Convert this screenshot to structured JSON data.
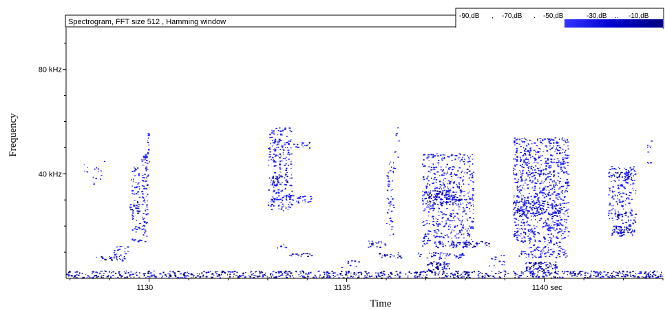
{
  "chart_data": {
    "type": "heatmap",
    "title": "Spectrogram, FFT size 512 , Hamming window",
    "xlabel": "Time",
    "ylabel": "Frequency",
    "xlim": [
      1127.9,
      1143.0
    ],
    "ylim": [
      0,
      96
    ],
    "x_ticks": [
      {
        "value": 1130,
        "label": "1130"
      },
      {
        "value": 1135,
        "label": "1135"
      },
      {
        "value": 1140,
        "label": "1140 sec"
      }
    ],
    "y_ticks": [
      {
        "value": 40,
        "label": "40 kHz"
      },
      {
        "value": 80,
        "label": "80 kHz"
      }
    ],
    "color_scale": {
      "labels": [
        "-90,dB",
        "-70,dB",
        "-50,dB",
        "-30,dB",
        "-10,dB"
      ],
      "separators": [
        ",",
        ".",
        "",
        ".."
      ],
      "colors": [
        "#ffffff",
        "#0000ff",
        "#000080"
      ]
    },
    "clusters": [
      {
        "t_start": 1127.9,
        "t_end": 1143.0,
        "f_min": 0.3,
        "f_max": 3.0,
        "density": 0.55,
        "dark": true
      },
      {
        "t_start": 1128.6,
        "t_end": 1129.4,
        "f_min": 7.0,
        "f_max": 8.6,
        "density": 0.6,
        "dark": true
      },
      {
        "t_start": 1129.1,
        "t_end": 1129.5,
        "f_min": 9.0,
        "f_max": 12.5,
        "density": 0.3,
        "dark": false
      },
      {
        "t_start": 1129.55,
        "t_end": 1129.95,
        "f_min": 14.0,
        "f_max": 15.2,
        "density": 0.7,
        "dark": true
      },
      {
        "t_start": 1129.8,
        "t_end": 1129.95,
        "f_min": 16.0,
        "f_max": 48.0,
        "density": 0.45,
        "dark": false
      },
      {
        "t_start": 1129.55,
        "t_end": 1129.75,
        "f_min": 18.0,
        "f_max": 45.0,
        "density": 0.3,
        "dark": false
      },
      {
        "t_start": 1129.5,
        "t_end": 1129.75,
        "f_min": 25.0,
        "f_max": 28.5,
        "density": 0.6,
        "dark": true
      },
      {
        "t_start": 1129.9,
        "t_end": 1130.0,
        "f_min": 38.0,
        "f_max": 56.0,
        "density": 0.3,
        "dark": false
      },
      {
        "t_start": 1128.3,
        "t_end": 1128.9,
        "f_min": 36.0,
        "f_max": 45.0,
        "density": 0.08,
        "dark": false
      },
      {
        "t_start": 1133.0,
        "t_end": 1133.6,
        "f_min": 26.0,
        "f_max": 58.0,
        "density": 0.28,
        "dark": false
      },
      {
        "t_start": 1133.1,
        "t_end": 1133.5,
        "f_min": 36.0,
        "f_max": 39.5,
        "density": 0.6,
        "dark": true
      },
      {
        "t_start": 1133.1,
        "t_end": 1134.1,
        "f_min": 29.0,
        "f_max": 32.0,
        "density": 0.45,
        "dark": false
      },
      {
        "t_start": 1133.1,
        "t_end": 1134.1,
        "f_min": 50.0,
        "f_max": 53.0,
        "density": 0.35,
        "dark": false
      },
      {
        "t_start": 1133.5,
        "t_end": 1134.1,
        "f_min": 8.5,
        "f_max": 9.8,
        "density": 0.55,
        "dark": true
      },
      {
        "t_start": 1133.2,
        "t_end": 1133.5,
        "f_min": 11.5,
        "f_max": 13.0,
        "density": 0.3,
        "dark": false
      },
      {
        "t_start": 1135.5,
        "t_end": 1136.0,
        "f_min": 12.0,
        "f_max": 14.5,
        "density": 0.5,
        "dark": true
      },
      {
        "t_start": 1135.8,
        "t_end": 1136.4,
        "f_min": 8.0,
        "f_max": 10.0,
        "density": 0.5,
        "dark": true
      },
      {
        "t_start": 1136.0,
        "t_end": 1136.2,
        "f_min": 16.0,
        "f_max": 45.0,
        "density": 0.25,
        "dark": false
      },
      {
        "t_start": 1134.8,
        "t_end": 1135.3,
        "f_min": 4.0,
        "f_max": 7.0,
        "density": 0.15,
        "dark": false
      },
      {
        "t_start": 1136.9,
        "t_end": 1138.2,
        "f_min": 12.0,
        "f_max": 48.0,
        "density": 0.3,
        "dark": false
      },
      {
        "t_start": 1136.9,
        "t_end": 1137.9,
        "f_min": 28.0,
        "f_max": 34.0,
        "density": 0.55,
        "dark": true
      },
      {
        "t_start": 1137.0,
        "t_end": 1137.6,
        "f_min": 3.0,
        "f_max": 6.5,
        "density": 0.7,
        "dark": true
      },
      {
        "t_start": 1137.6,
        "t_end": 1138.6,
        "f_min": 12.0,
        "f_max": 14.5,
        "density": 0.6,
        "dark": true
      },
      {
        "t_start": 1136.8,
        "t_end": 1138.0,
        "f_min": 7.5,
        "f_max": 10.0,
        "density": 0.4,
        "dark": false
      },
      {
        "t_start": 1138.6,
        "t_end": 1139.0,
        "f_min": 5.0,
        "f_max": 9.0,
        "density": 0.25,
        "dark": false
      },
      {
        "t_start": 1139.2,
        "t_end": 1140.6,
        "f_min": 14.0,
        "f_max": 54.0,
        "density": 0.42,
        "dark": false
      },
      {
        "t_start": 1139.3,
        "t_end": 1140.4,
        "f_min": 24.0,
        "f_max": 30.0,
        "density": 0.5,
        "dark": true
      },
      {
        "t_start": 1139.3,
        "t_end": 1140.6,
        "f_min": 8.0,
        "f_max": 11.0,
        "density": 0.45,
        "dark": false
      },
      {
        "t_start": 1139.5,
        "t_end": 1140.3,
        "f_min": 2.5,
        "f_max": 6.5,
        "density": 0.7,
        "dark": true
      },
      {
        "t_start": 1139.6,
        "t_end": 1140.5,
        "f_min": 11.0,
        "f_max": 14.0,
        "density": 0.35,
        "dark": false
      },
      {
        "t_start": 1141.6,
        "t_end": 1142.3,
        "f_min": 16.0,
        "f_max": 43.0,
        "density": 0.3,
        "dark": false
      },
      {
        "t_start": 1141.7,
        "t_end": 1142.2,
        "f_min": 17.0,
        "f_max": 20.5,
        "density": 0.75,
        "dark": true
      },
      {
        "t_start": 1141.7,
        "t_end": 1142.2,
        "f_min": 24.0,
        "f_max": 25.5,
        "density": 0.6,
        "dark": true
      },
      {
        "t_start": 1141.8,
        "t_end": 1142.2,
        "f_min": 38.0,
        "f_max": 41.0,
        "density": 0.6,
        "dark": true
      },
      {
        "t_start": 1142.6,
        "t_end": 1142.7,
        "f_min": 44.0,
        "f_max": 53.0,
        "density": 0.3,
        "dark": false
      },
      {
        "t_start": 1136.2,
        "t_end": 1136.3,
        "f_min": 46.0,
        "f_max": 60.0,
        "density": 0.15,
        "dark": false
      }
    ]
  }
}
